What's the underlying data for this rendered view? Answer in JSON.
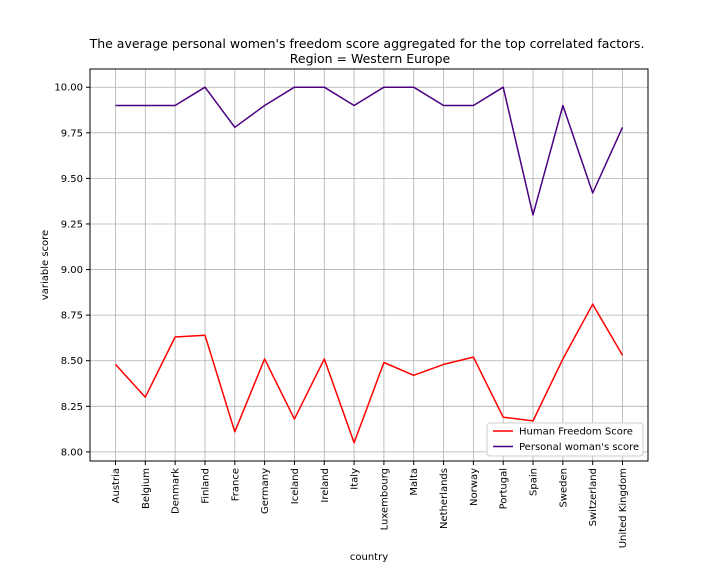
{
  "chart_data": {
    "type": "line",
    "title": "The average personal women's freedom score aggregated for the top correlated factors.",
    "subtitle": "Region = Western Europe",
    "xlabel": "country",
    "ylabel": "variable score",
    "ylim": [
      7.95,
      10.1
    ],
    "yticks": [
      "8.00",
      "8.25",
      "8.50",
      "8.75",
      "9.00",
      "9.25",
      "9.50",
      "9.75",
      "10.00"
    ],
    "grid": true,
    "legend_position": "lower-right",
    "categories": [
      "Austria",
      "Belgium",
      "Denmark",
      "Finland",
      "France",
      "Germany",
      "Iceland",
      "Ireland",
      "Italy",
      "Luxembourg",
      "Malta",
      "Netherlands",
      "Norway",
      "Portugal",
      "Spain",
      "Sweden",
      "Switzerland",
      "United Kingdom"
    ],
    "series": [
      {
        "name": "Human Freedom Score",
        "color": "#ff0000",
        "values": [
          8.48,
          8.3,
          8.63,
          8.64,
          8.11,
          8.51,
          8.18,
          8.51,
          8.05,
          8.49,
          8.42,
          8.48,
          8.52,
          8.19,
          8.17,
          8.51,
          8.81,
          8.53
        ]
      },
      {
        "name": "Personal woman's score",
        "color": "#4b0082",
        "values": [
          9.9,
          9.9,
          9.9,
          10.0,
          9.78,
          9.9,
          10.0,
          10.0,
          9.9,
          10.0,
          10.0,
          9.9,
          9.9,
          10.0,
          9.3,
          9.9,
          9.42,
          9.78
        ]
      }
    ]
  }
}
